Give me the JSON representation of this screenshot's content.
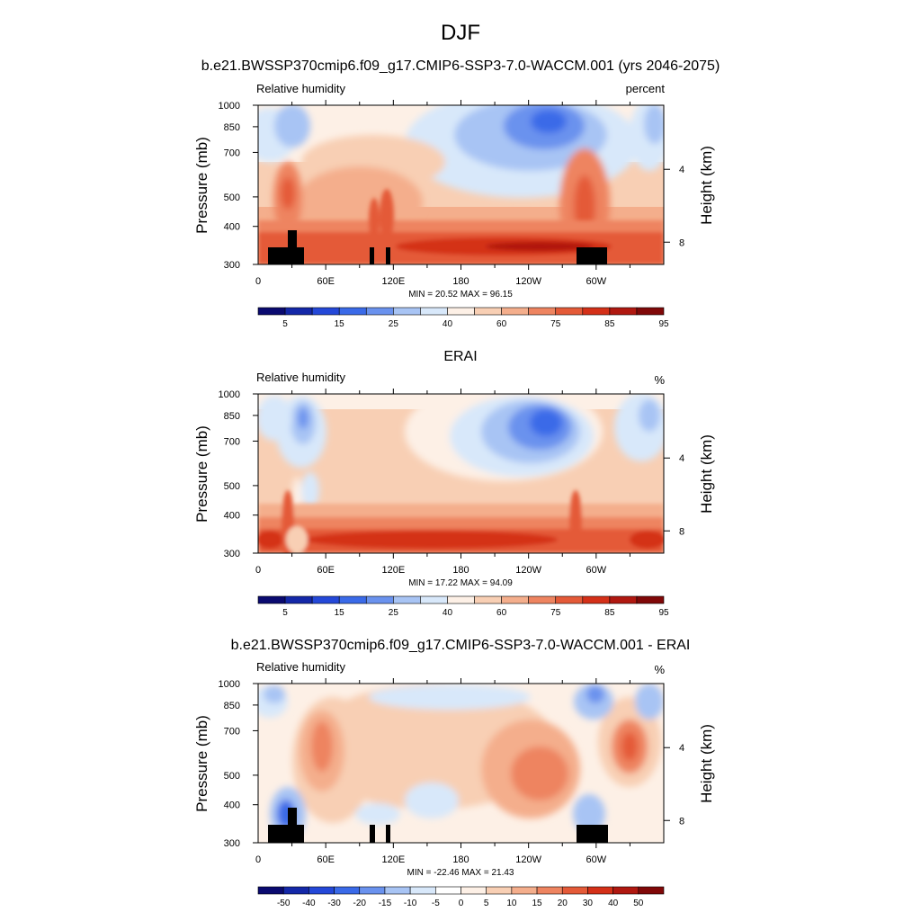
{
  "figure": {
    "title": "DJF",
    "subtitle": "b.e21.BWSSP370cmip6.f09_g17.CMIP6-SSP3-7.0-WACCM.001 (yrs 2046-2075)"
  },
  "chart_data": [
    {
      "type": "heatmap",
      "title": "",
      "left_label": "Relative humidity",
      "right_label": "percent",
      "ylabel": "Pressure (mb)",
      "ylabel_right": "Height (km)",
      "x_ticks": [
        "0",
        "60E",
        "120E",
        "180",
        "120W",
        "60W"
      ],
      "x_tick_values": [
        0,
        60,
        120,
        180,
        240,
        300
      ],
      "xlim": [
        0,
        360
      ],
      "y_ticks": [
        "300",
        "400",
        "500",
        "700",
        "850",
        "1000"
      ],
      "y_tick_values": [
        300,
        400,
        500,
        700,
        850,
        1000
      ],
      "ylim": [
        1000,
        300
      ],
      "y_scale": "log",
      "right_ticks": [
        "8",
        "4"
      ],
      "stats": "MIN = 20.52  MAX = 96.15",
      "colorbar_labels": [
        "5",
        "15",
        "25",
        "40",
        "60",
        "75",
        "85",
        "95"
      ],
      "colorbar_colors": [
        "#0a0a70",
        "#1428a8",
        "#2448d8",
        "#3a6ae8",
        "#6a92ee",
        "#a8c4f4",
        "#d8e8fa",
        "#fdf0e6",
        "#f8cfb4",
        "#f4ae8c",
        "#ee8460",
        "#e45a38",
        "#d43018",
        "#b01810",
        "#800808"
      ],
      "topography": true
    },
    {
      "type": "heatmap",
      "title": "ERAI",
      "left_label": "Relative humidity",
      "right_label": "%",
      "ylabel": "Pressure (mb)",
      "ylabel_right": "Height (km)",
      "x_ticks": [
        "0",
        "60E",
        "120E",
        "180",
        "120W",
        "60W"
      ],
      "x_tick_values": [
        0,
        60,
        120,
        180,
        240,
        300
      ],
      "xlim": [
        0,
        360
      ],
      "y_ticks": [
        "300",
        "400",
        "500",
        "700",
        "850",
        "1000"
      ],
      "y_tick_values": [
        300,
        400,
        500,
        700,
        850,
        1000
      ],
      "ylim": [
        1000,
        300
      ],
      "y_scale": "log",
      "right_ticks": [
        "8",
        "4"
      ],
      "stats": "MIN = 17.22  MAX = 94.09",
      "colorbar_labels": [
        "5",
        "15",
        "25",
        "40",
        "60",
        "75",
        "85",
        "95"
      ],
      "colorbar_colors": [
        "#0a0a70",
        "#1428a8",
        "#2448d8",
        "#3a6ae8",
        "#6a92ee",
        "#a8c4f4",
        "#d8e8fa",
        "#fdf0e6",
        "#f8cfb4",
        "#f4ae8c",
        "#ee8460",
        "#e45a38",
        "#d43018",
        "#b01810",
        "#800808"
      ],
      "topography": false
    },
    {
      "type": "heatmap",
      "title": "b.e21.BWSSP370cmip6.f09_g17.CMIP6-SSP3-7.0-WACCM.001 - ERAI",
      "left_label": "Relative humidity",
      "right_label": "%",
      "ylabel": "Pressure (mb)",
      "ylabel_right": "Height (km)",
      "x_ticks": [
        "0",
        "60E",
        "120E",
        "180",
        "120W",
        "60W"
      ],
      "x_tick_values": [
        0,
        60,
        120,
        180,
        240,
        300
      ],
      "xlim": [
        0,
        360
      ],
      "y_ticks": [
        "300",
        "400",
        "500",
        "700",
        "850",
        "1000"
      ],
      "y_tick_values": [
        300,
        400,
        500,
        700,
        850,
        1000
      ],
      "ylim": [
        1000,
        300
      ],
      "y_scale": "log",
      "right_ticks": [
        "8",
        "4"
      ],
      "stats": "MIN = -22.46  MAX = 21.43",
      "colorbar_labels": [
        "-50",
        "-40",
        "-30",
        "-20",
        "-15",
        "-10",
        "-5",
        "0",
        "5",
        "10",
        "15",
        "20",
        "30",
        "40",
        "50"
      ],
      "colorbar_colors": [
        "#0a0a70",
        "#1428a8",
        "#2448d8",
        "#3a6ae8",
        "#6a92ee",
        "#a8c4f4",
        "#d8e8fa",
        "#ffffff",
        "#fdf0e6",
        "#f8cfb4",
        "#f4ae8c",
        "#ee8460",
        "#e45a38",
        "#d43018",
        "#b01810",
        "#800808"
      ],
      "topography": true
    }
  ]
}
